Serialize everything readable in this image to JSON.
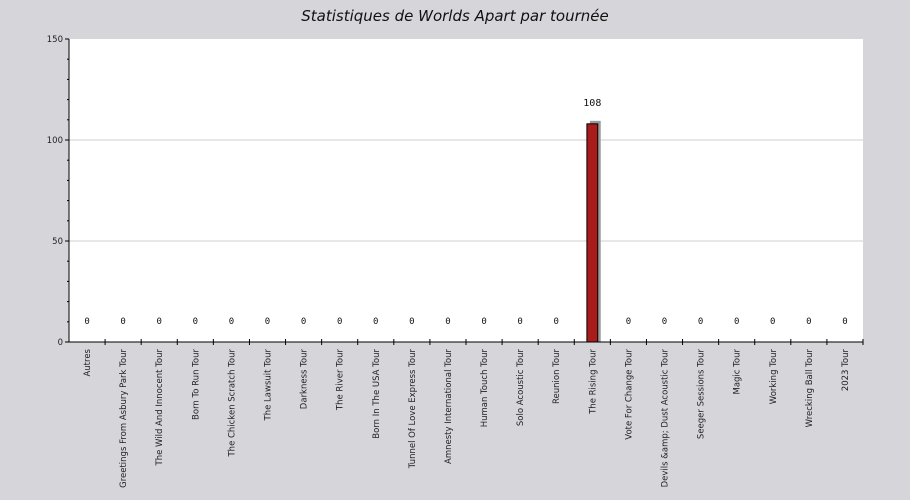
{
  "chart_data": {
    "type": "bar",
    "title": "Statistiques de Worlds Apart par tournée",
    "xlabel": "",
    "ylabel": "",
    "ylim": [
      0,
      150
    ],
    "yticks": [
      0,
      50,
      100,
      150
    ],
    "grid": true,
    "categories": [
      "Autres",
      "Greetings From Asbury Park Tour",
      "The Wild And Innocent Tour",
      "Born To Run Tour",
      "The Chicken Scratch Tour",
      "The Lawsuit Tour",
      "Darkness Tour",
      "The River Tour",
      "Born In The USA Tour",
      "Tunnel Of Love Express Tour",
      "Amnesty International Tour",
      "Human Touch Tour",
      "Solo Acoustic Tour",
      "Reunion Tour",
      "The Rising Tour",
      "Vote For Change Tour",
      "Devils &amp; Dust Acoustic Tour",
      "Seeger Sessions Tour",
      "Magic Tour",
      "Working Tour",
      "Wrecking Ball Tour",
      "2023 Tour"
    ],
    "values": [
      0,
      0,
      0,
      0,
      0,
      0,
      0,
      0,
      0,
      0,
      0,
      0,
      0,
      0,
      108,
      0,
      0,
      0,
      0,
      0,
      0,
      0
    ],
    "bar_color": "#a81c1c"
  }
}
